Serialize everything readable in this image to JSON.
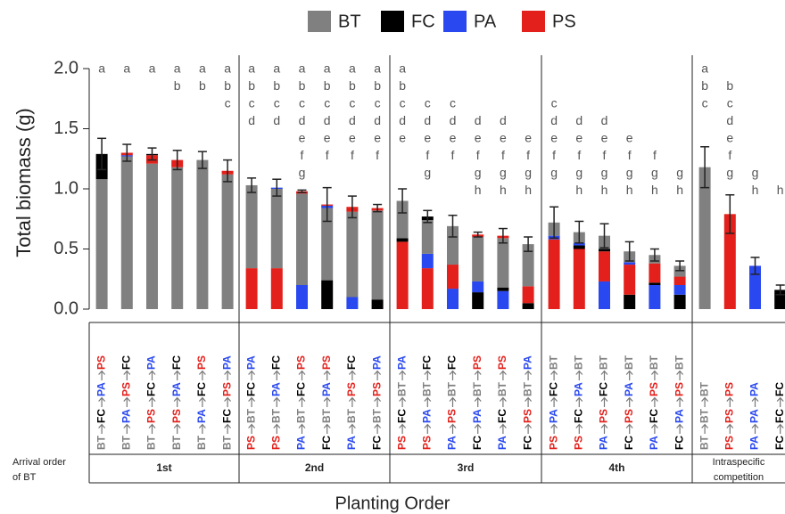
{
  "chart_data": {
    "type": "stacked_bar",
    "y_label": "Total biomass (g)",
    "x_label": "Planting Order",
    "row_label": [
      "Arrival order",
      "of BT"
    ],
    "groups": [
      [
        "1st"
      ],
      [
        "2nd"
      ],
      [
        "3rd"
      ],
      [
        "4th"
      ],
      [
        "Intraspecific",
        "competition"
      ]
    ],
    "categories": [
      [
        "BT",
        "FC",
        "PA",
        "PS"
      ],
      [
        "BT",
        "PA",
        "PS",
        "FC"
      ],
      [
        "BT",
        "PS",
        "FC",
        "PA"
      ],
      [
        "BT",
        "PS",
        "PA",
        "FC"
      ],
      [
        "BT",
        "PA",
        "FC",
        "PS"
      ],
      [
        "BT",
        "FC",
        "PS",
        "PA"
      ],
      [
        "PS",
        "BT",
        "FC",
        "PA"
      ],
      [
        "PS",
        "BT",
        "PA",
        "FC"
      ],
      [
        "PA",
        "BT",
        "FC",
        "PS"
      ],
      [
        "FC",
        "BT",
        "PA",
        "PS"
      ],
      [
        "PA",
        "BT",
        "PS",
        "FC"
      ],
      [
        "FC",
        "BT",
        "PS",
        "PA"
      ],
      [
        "PS",
        "FC",
        "BT",
        "PA"
      ],
      [
        "PS",
        "PA",
        "BT",
        "FC"
      ],
      [
        "PA",
        "PS",
        "BT",
        "FC"
      ],
      [
        "FC",
        "PA",
        "BT",
        "PS"
      ],
      [
        "PA",
        "FC",
        "BT",
        "PS"
      ],
      [
        "FC",
        "PS",
        "BT",
        "PA"
      ],
      [
        "PS",
        "PA",
        "FC",
        "BT"
      ],
      [
        "PS",
        "FC",
        "PA",
        "BT"
      ],
      [
        "PA",
        "PS",
        "FC",
        "BT"
      ],
      [
        "FC",
        "PS",
        "PA",
        "BT"
      ],
      [
        "PA",
        "FC",
        "PS",
        "BT"
      ],
      [
        "FC",
        "PA",
        "PS",
        "BT"
      ],
      [
        "BT",
        "BT",
        "BT"
      ],
      [
        "PS",
        "PS",
        "PS"
      ],
      [
        "PA",
        "PA",
        "PA"
      ],
      [
        "FC",
        "FC",
        "FC"
      ]
    ],
    "series": [
      {
        "name": "BT",
        "color": "#808080",
        "values": [
          1.08,
          1.27,
          1.21,
          1.18,
          1.24,
          1.12,
          0.69,
          0.66,
          0.76,
          0.6,
          0.71,
          0.74,
          0.31,
          0.28,
          0.32,
          0.37,
          0.41,
          0.35,
          0.11,
          0.09,
          0.11,
          0.09,
          0.07,
          0.09,
          1.18,
          0,
          0,
          0
        ]
      },
      {
        "name": "FC",
        "color": "#000000",
        "values": [
          0.21,
          0,
          0.01,
          0,
          0,
          0,
          0,
          0,
          0,
          0.24,
          0,
          0.08,
          0.03,
          0.03,
          0,
          0.14,
          0.03,
          0.05,
          0,
          0.03,
          0.02,
          0.12,
          0.02,
          0.12,
          0,
          0,
          0,
          0.16
        ]
      },
      {
        "name": "PA",
        "color": "#2a48f0",
        "values": [
          0,
          0.01,
          0,
          0,
          0,
          0,
          0,
          0.01,
          0.2,
          0.02,
          0.1,
          0,
          0,
          0.12,
          0.17,
          0.09,
          0.15,
          0,
          0.03,
          0.02,
          0.23,
          0.02,
          0.2,
          0.08,
          0,
          0,
          0.36,
          0
        ]
      },
      {
        "name": "PS",
        "color": "#e3201b",
        "values": [
          0,
          0.02,
          0.07,
          0.06,
          0,
          0.03,
          0.34,
          0.34,
          0.02,
          0.01,
          0.04,
          0.02,
          0.56,
          0.34,
          0.2,
          0.02,
          0.02,
          0.14,
          0.58,
          0.5,
          0.25,
          0.25,
          0.16,
          0.07,
          0,
          0.79,
          0,
          0
        ]
      }
    ],
    "errors": [
      0.13,
      0.07,
      0.05,
      0.08,
      0.07,
      0.09,
      0.06,
      0.07,
      0.01,
      0.14,
      0.09,
      0.03,
      0.1,
      0.05,
      0.09,
      0.02,
      0.06,
      0.06,
      0.13,
      0.09,
      0.1,
      0.08,
      0.05,
      0.04,
      0.17,
      0.16,
      0.07,
      0.04
    ],
    "letters": [
      [
        "a"
      ],
      [
        "a"
      ],
      [
        "a"
      ],
      [
        "a",
        "b"
      ],
      [
        "a",
        "b"
      ],
      [
        "a",
        "b",
        "c"
      ],
      [
        "a",
        "b",
        "c",
        "d"
      ],
      [
        "a",
        "b",
        "c",
        "d"
      ],
      [
        "a",
        "b",
        "c",
        "d",
        "e",
        "f",
        "g"
      ],
      [
        "a",
        "b",
        "c",
        "d",
        "e",
        "f"
      ],
      [
        "a",
        "b",
        "c",
        "d",
        "e",
        "f"
      ],
      [
        "a",
        "b",
        "c",
        "d",
        "e",
        "f"
      ],
      [
        "a",
        "b",
        "c",
        "d",
        "e"
      ],
      [
        "c",
        "d",
        "e",
        "f",
        "g"
      ],
      [
        "c",
        "d",
        "e",
        "f"
      ],
      [
        "d",
        "e",
        "f",
        "g",
        "h"
      ],
      [
        "d",
        "e",
        "f",
        "g",
        "h"
      ],
      [
        "e",
        "f",
        "g",
        "h"
      ],
      [
        "c",
        "d",
        "e",
        "f",
        "g"
      ],
      [
        "d",
        "e",
        "f",
        "g",
        "h"
      ],
      [
        "d",
        "e",
        "f",
        "g",
        "h"
      ],
      [
        "e",
        "f",
        "g",
        "h"
      ],
      [
        "f",
        "g",
        "h"
      ],
      [
        "g",
        "h"
      ],
      [
        "a",
        "b",
        "c"
      ],
      [
        "b",
        "c",
        "d",
        "e",
        "f",
        "g"
      ],
      [
        "g",
        "h"
      ],
      [
        "h"
      ]
    ],
    "ylim": [
      0,
      2
    ],
    "yticks": [
      {
        "value": 0,
        "label": "0.0"
      },
      0.5,
      {
        "value": 1,
        "label": "1.0"
      },
      1.5,
      {
        "value": 2,
        "label": "2.0"
      }
    ],
    "legend": "top"
  }
}
